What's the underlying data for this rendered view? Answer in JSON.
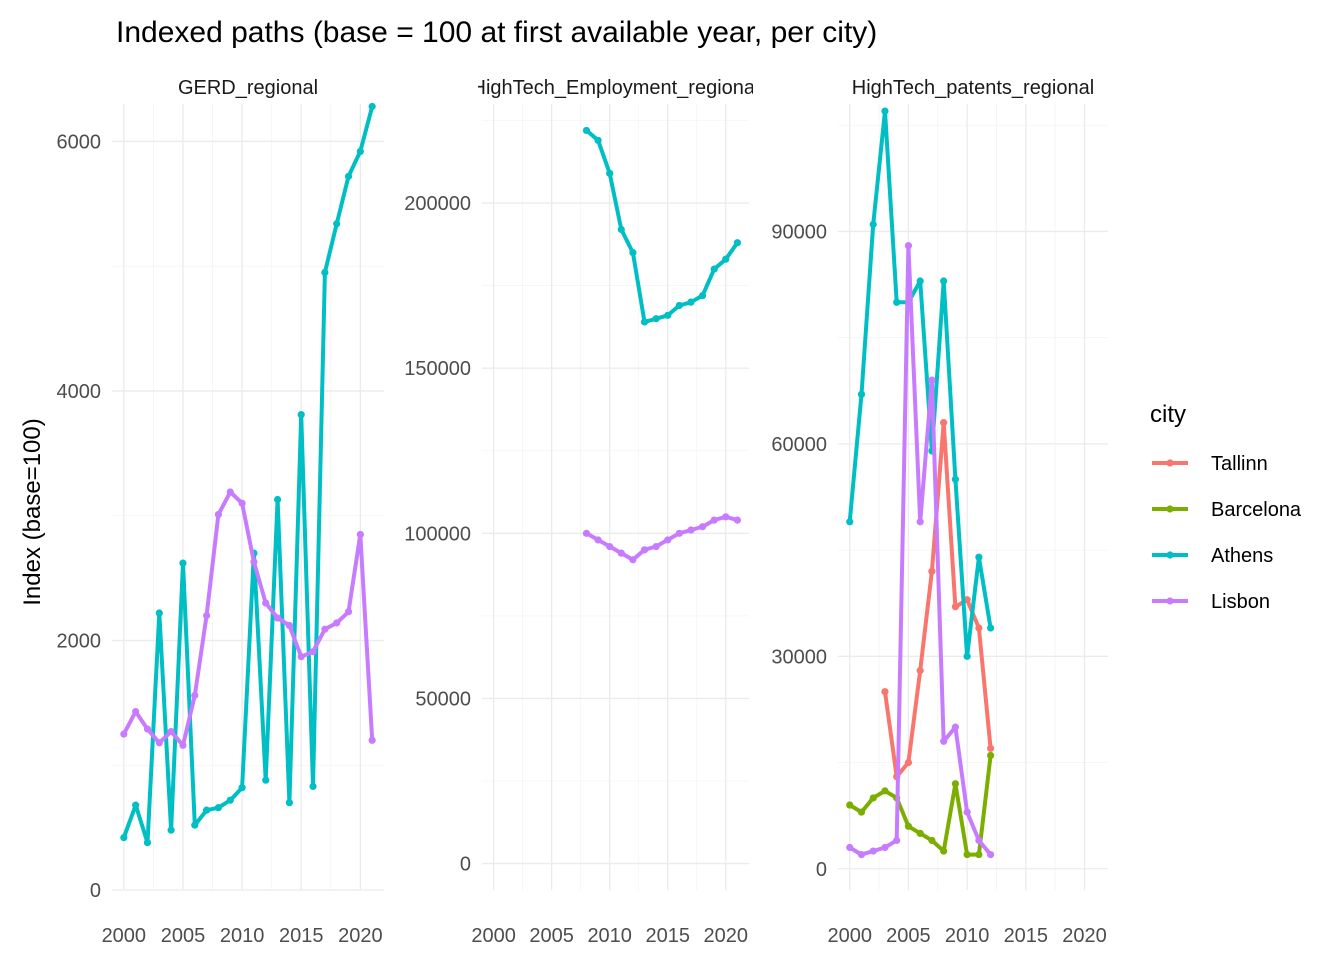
{
  "chart_data": {
    "type": "line",
    "title": "Indexed paths (base = 100 at first available year, per city)",
    "ylabel": "Index (base=100)",
    "xlabel": "",
    "legend": {
      "title": "city",
      "position": "right"
    },
    "series_colors": {
      "Tallinn": "#F8766D",
      "Barcelona": "#7CAE00",
      "Athens": "#00BFC4",
      "Lisbon": "#C77CFF"
    },
    "grid": true,
    "panels": [
      {
        "name": "GERD_regional",
        "xlim": [
          1999,
          2022
        ],
        "xticks": [
          2000,
          2005,
          2010,
          2015,
          2020
        ],
        "ylim": [
          0,
          6300
        ],
        "yticks": [
          0,
          2000,
          4000,
          6000
        ],
        "series": [
          {
            "name": "Athens",
            "x": [
              2000,
              2001,
              2002,
              2003,
              2004,
              2005,
              2006,
              2007,
              2008,
              2009,
              2010,
              2011,
              2012,
              2013,
              2014,
              2015,
              2016,
              2017,
              2018,
              2019,
              2020,
              2021
            ],
            "y": [
              420,
              680,
              380,
              2220,
              480,
              2620,
              520,
              640,
              660,
              720,
              820,
              2700,
              880,
              3130,
              700,
              3810,
              830,
              4950,
              5340,
              5720,
              5920,
              6280
            ]
          },
          {
            "name": "Lisbon",
            "x": [
              2000,
              2001,
              2002,
              2003,
              2004,
              2005,
              2006,
              2007,
              2008,
              2009,
              2010,
              2011,
              2012,
              2013,
              2014,
              2015,
              2016,
              2017,
              2018,
              2019,
              2020,
              2021
            ],
            "y": [
              1250,
              1430,
              1290,
              1180,
              1270,
              1160,
              1560,
              2200,
              3010,
              3190,
              3100,
              2630,
              2300,
              2180,
              2120,
              1870,
              1910,
              2090,
              2140,
              2230,
              2850,
              1200
            ]
          }
        ]
      },
      {
        "name": "HighTech_Employment_regional",
        "xlim": [
          1999,
          2022
        ],
        "xticks": [
          2000,
          2005,
          2010,
          2015,
          2020
        ],
        "ylim": [
          -8000,
          230000
        ],
        "yticks": [
          0,
          50000,
          100000,
          150000,
          200000
        ],
        "series": [
          {
            "name": "Athens",
            "x": [
              2008,
              2009,
              2010,
              2011,
              2012,
              2013,
              2014,
              2015,
              2016,
              2017,
              2018,
              2019,
              2020,
              2021
            ],
            "y": [
              222000,
              219000,
              209000,
              192000,
              185000,
              164000,
              165000,
              166000,
              169000,
              170000,
              172000,
              180000,
              183000,
              188000
            ]
          },
          {
            "name": "Lisbon",
            "x": [
              2008,
              2009,
              2010,
              2011,
              2012,
              2013,
              2014,
              2015,
              2016,
              2017,
              2018,
              2019,
              2020,
              2021
            ],
            "y": [
              100000,
              98000,
              96000,
              94000,
              92000,
              95000,
              96000,
              98000,
              100000,
              101000,
              102000,
              104000,
              105000,
              104000
            ]
          }
        ]
      },
      {
        "name": "HighTech_patents_regional",
        "xlim": [
          1999,
          2022
        ],
        "xticks": [
          2000,
          2005,
          2010,
          2015,
          2020
        ],
        "ylim": [
          -3000,
          108000
        ],
        "yticks": [
          0,
          30000,
          60000,
          90000
        ],
        "series": [
          {
            "name": "Tallinn",
            "x": [
              2003,
              2004,
              2005,
              2006,
              2007,
              2008,
              2009,
              2010,
              2011,
              2012
            ],
            "y": [
              25000,
              13000,
              15000,
              28000,
              42000,
              63000,
              37000,
              38000,
              34000,
              17000
            ]
          },
          {
            "name": "Barcelona",
            "x": [
              2000,
              2001,
              2002,
              2003,
              2004,
              2005,
              2006,
              2007,
              2008,
              2009,
              2010,
              2011,
              2012
            ],
            "y": [
              9000,
              8000,
              10000,
              11000,
              10000,
              6000,
              5000,
              4000,
              2500,
              12000,
              2000,
              2000,
              16000
            ]
          },
          {
            "name": "Athens",
            "x": [
              2000,
              2001,
              2002,
              2003,
              2004,
              2005,
              2006,
              2007,
              2008,
              2009,
              2010,
              2011,
              2012
            ],
            "y": [
              49000,
              67000,
              91000,
              107000,
              80000,
              80000,
              83000,
              59000,
              83000,
              55000,
              30000,
              44000,
              34000
            ]
          },
          {
            "name": "Lisbon",
            "x": [
              2000,
              2001,
              2002,
              2003,
              2004,
              2005,
              2006,
              2007,
              2008,
              2009,
              2010,
              2011,
              2012
            ],
            "y": [
              3000,
              2000,
              2500,
              3000,
              4000,
              88000,
              49000,
              69000,
              18000,
              20000,
              8000,
              4000,
              2000
            ]
          }
        ]
      }
    ]
  }
}
